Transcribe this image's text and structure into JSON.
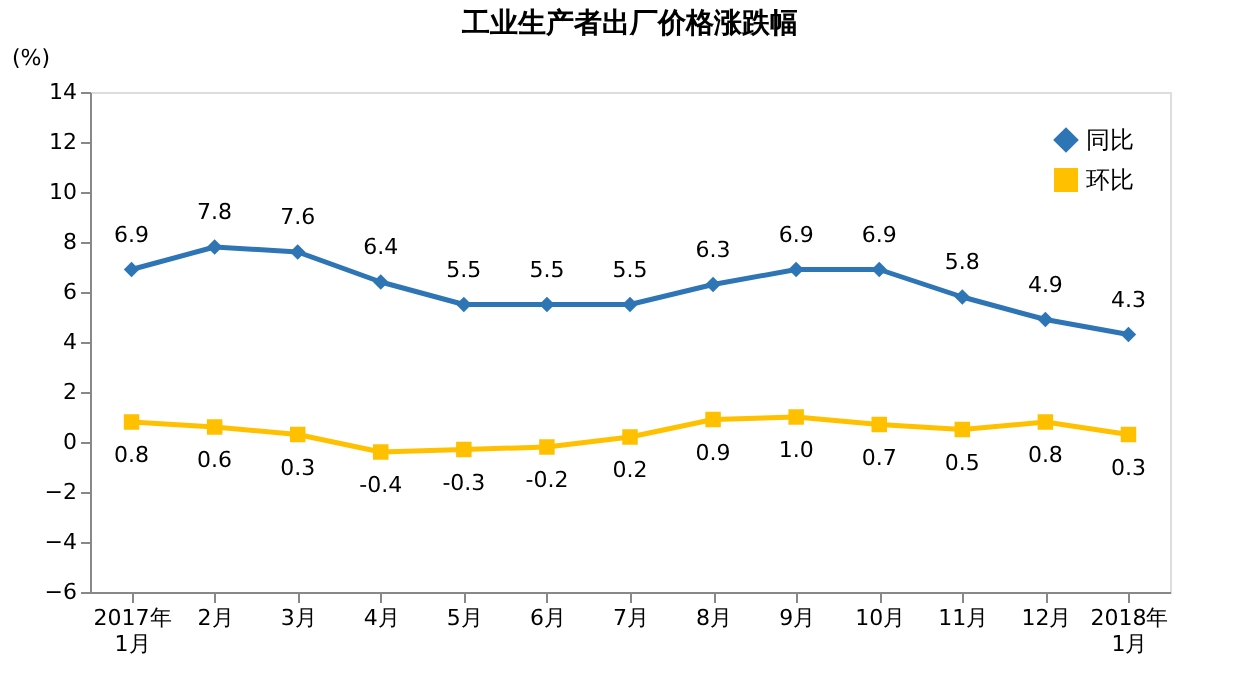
{
  "chart_data": {
    "type": "line",
    "title": "工业生产者出厂价格涨跌幅",
    "ylabel": "(%)",
    "categories": [
      "2017年\n1月",
      "2月",
      "3月",
      "4月",
      "5月",
      "6月",
      "7月",
      "8月",
      "9月",
      "10月",
      "11月",
      "12月",
      "2018年\n1月"
    ],
    "series": [
      {
        "name": "同比",
        "color": "#2e75b6",
        "marker": "diamond",
        "values": [
          6.9,
          7.8,
          7.6,
          6.4,
          5.5,
          5.5,
          5.5,
          6.3,
          6.9,
          6.9,
          5.8,
          4.9,
          4.3
        ],
        "value_labels": [
          "6.9",
          "7.8",
          "7.6",
          "6.4",
          "5.5",
          "5.5",
          "5.5",
          "6.3",
          "6.9",
          "6.9",
          "5.8",
          "4.9",
          "4.3"
        ]
      },
      {
        "name": "环比",
        "color": "#ffc000",
        "marker": "square",
        "values": [
          0.8,
          0.6,
          0.3,
          -0.4,
          -0.3,
          -0.2,
          0.2,
          0.9,
          1.0,
          0.7,
          0.5,
          0.8,
          0.3
        ],
        "value_labels": [
          "0.8",
          "0.6",
          "0.3",
          "-0.4",
          "-0.3",
          "-0.2",
          "0.2",
          "0.9",
          "1.0",
          "0.7",
          "0.5",
          "0.8",
          "0.3"
        ]
      }
    ],
    "ylim": [
      -6,
      14
    ],
    "yticks": [
      -6,
      -4,
      -2,
      0,
      2,
      4,
      6,
      8,
      10,
      12,
      14
    ],
    "grid": false,
    "legend": "top right",
    "line_style": "solid"
  }
}
